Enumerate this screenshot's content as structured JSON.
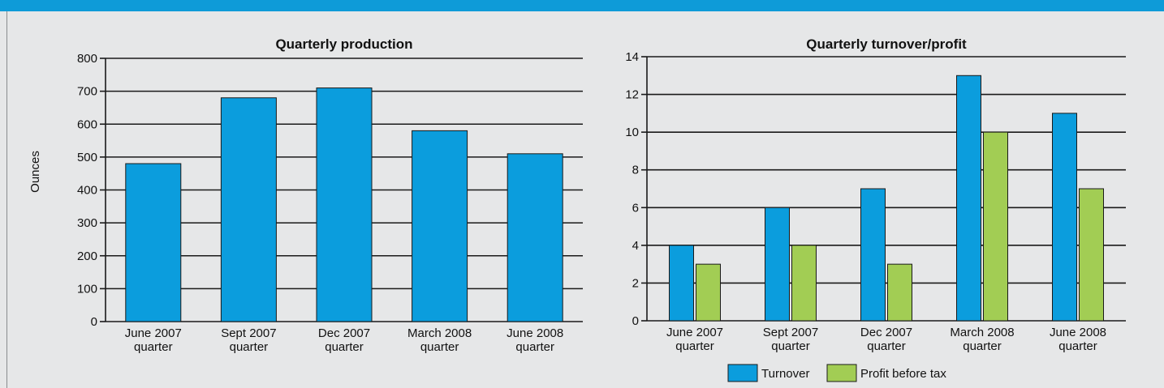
{
  "colors": {
    "header_bar": "#0e9bd8",
    "turnover": "#0b9ddd",
    "profit": "#a2cd54",
    "production": "#0b9ddd",
    "background": "#e6e7e8"
  },
  "chart_data": [
    {
      "type": "bar",
      "title": "Quarterly production",
      "ylabel": "Ounces",
      "xlabel": "",
      "categories": [
        [
          "June 2007",
          "quarter"
        ],
        [
          "Sept 2007",
          "quarter"
        ],
        [
          "Dec 2007",
          "quarter"
        ],
        [
          "March 2008",
          "quarter"
        ],
        [
          "June 2008",
          "quarter"
        ]
      ],
      "series": [
        {
          "values": [
            480,
            680,
            710,
            580,
            510
          ]
        }
      ],
      "ylim": [
        0,
        800
      ],
      "yticks": [
        0,
        100,
        200,
        300,
        400,
        500,
        600,
        700,
        800
      ],
      "grid": true,
      "legend": false
    },
    {
      "type": "bar",
      "title": "Quarterly turnover/profit",
      "ylabel": "",
      "xlabel": "",
      "categories": [
        [
          "June 2007",
          "quarter"
        ],
        [
          "Sept 2007",
          "quarter"
        ],
        [
          "Dec 2007",
          "quarter"
        ],
        [
          "March 2008",
          "quarter"
        ],
        [
          "June 2008",
          "quarter"
        ]
      ],
      "series": [
        {
          "name": "Turnover",
          "values": [
            4,
            6,
            7,
            13,
            11
          ]
        },
        {
          "name": "Profit before tax",
          "values": [
            3,
            4,
            3,
            10,
            7
          ]
        }
      ],
      "ylim": [
        0,
        14
      ],
      "yticks": [
        0,
        2,
        4,
        6,
        8,
        10,
        12,
        14
      ],
      "grid": true,
      "legend": "bottom-center"
    }
  ]
}
